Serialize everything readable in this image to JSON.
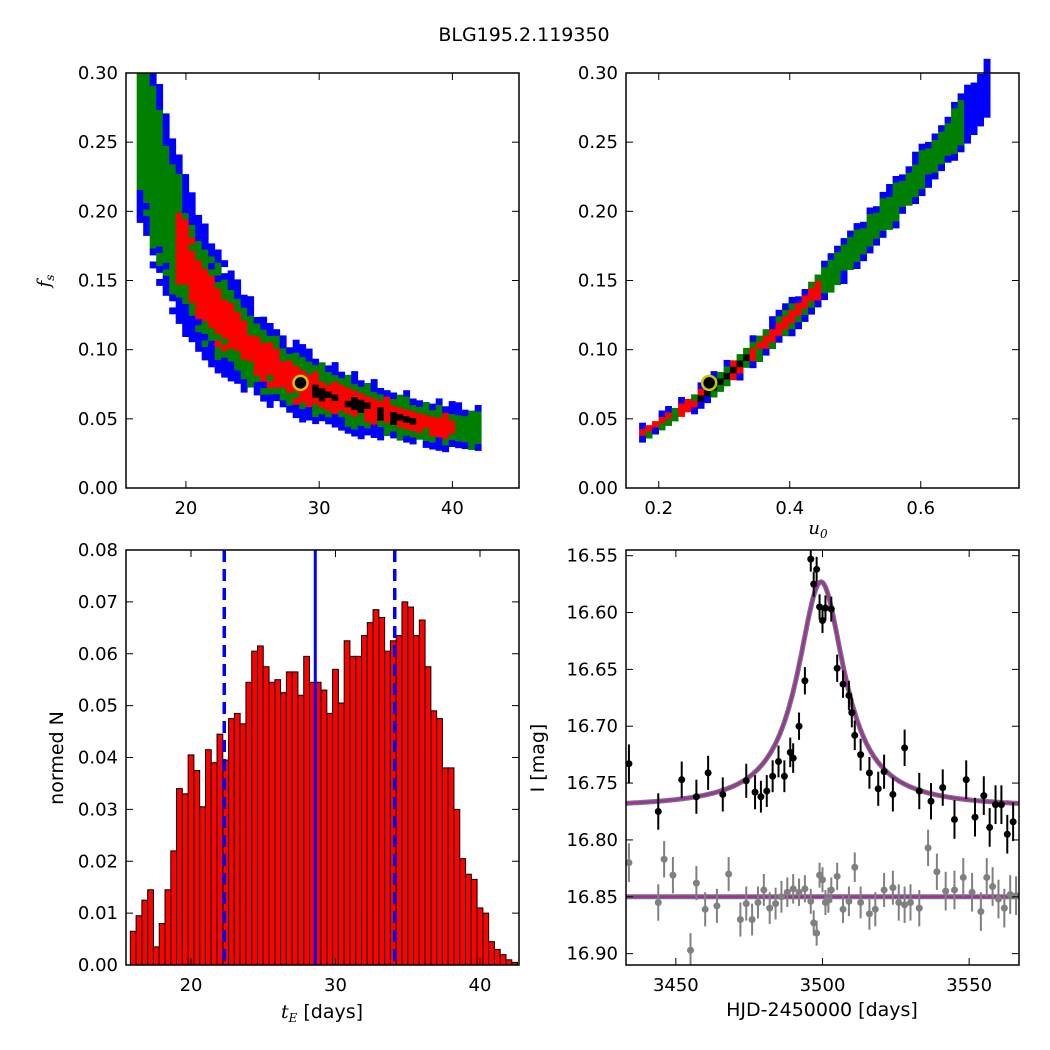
{
  "figure": {
    "title": "BLG195.2.119350"
  },
  "colors": {
    "outer_region": "#0000ff",
    "mid_region": "#008000",
    "inner_region": "#ff0000",
    "core_region": "#000000",
    "best_fit_marker": "#c9c900",
    "hist_bar": "#ff0000",
    "hist_edge": "#000000",
    "median_line": "#0000ff",
    "model_curve": "#a030a0",
    "data_band1": "#000000",
    "data_band2": "#808080"
  },
  "chart_data": [
    {
      "id": "fs_vs_tE",
      "type": "heatmap",
      "title": "",
      "xlabel": "",
      "ylabel": "f_s",
      "xlim": [
        15.5,
        45
      ],
      "ylim": [
        0.0,
        0.3
      ],
      "xticks": [
        "20",
        "30",
        "40"
      ],
      "yticks": [
        "0.00",
        "0.05",
        "0.10",
        "0.15",
        "0.20",
        "0.25",
        "0.30"
      ],
      "best_fit": {
        "x": 28.6,
        "y": 0.076
      },
      "ridge": {
        "x": [
          16.3,
          17.0,
          18.0,
          19.0,
          20.0,
          21.0,
          22.0,
          23.0,
          24.0,
          25.0,
          26.0,
          27.0,
          28.0,
          29.0,
          30.0,
          32.0,
          34.0,
          36.0,
          38.0,
          40.0,
          42.0
        ],
        "y": [
          0.285,
          0.252,
          0.214,
          0.186,
          0.164,
          0.146,
          0.131,
          0.119,
          0.109,
          0.1,
          0.093,
          0.086,
          0.08,
          0.075,
          0.071,
          0.064,
          0.058,
          0.053,
          0.049,
          0.046,
          0.044
        ]
      }
    },
    {
      "id": "fs_vs_u0",
      "type": "heatmap",
      "title": "",
      "xlabel": "u_0",
      "ylabel": "",
      "xlim": [
        0.15,
        0.75
      ],
      "ylim": [
        0.0,
        0.3
      ],
      "xticks": [
        "0.2",
        "0.4",
        "0.6"
      ],
      "yticks": [
        "0.00",
        "0.05",
        "0.10",
        "0.15",
        "0.20",
        "0.25",
        "0.30"
      ],
      "best_fit": {
        "x": 0.277,
        "y": 0.076
      },
      "ridge": {
        "x": [
          0.17,
          0.2,
          0.25,
          0.3,
          0.35,
          0.4,
          0.45,
          0.5,
          0.55,
          0.6,
          0.65,
          0.7
        ],
        "y": [
          0.042,
          0.05,
          0.065,
          0.084,
          0.105,
          0.127,
          0.152,
          0.178,
          0.205,
          0.233,
          0.262,
          0.292
        ]
      }
    },
    {
      "id": "tE_histogram",
      "type": "bar",
      "title": "",
      "xlabel": "t_E [days]",
      "ylabel": "normed N",
      "xlim": [
        15.5,
        42.7
      ],
      "ylim": [
        0.0,
        0.08
      ],
      "xticks": [
        "20",
        "30",
        "40"
      ],
      "yticks": [
        "0.00",
        "0.01",
        "0.02",
        "0.03",
        "0.04",
        "0.05",
        "0.06",
        "0.07",
        "0.08"
      ],
      "bin_start": 15.8,
      "bin_width": 0.4,
      "values": [
        0.0065,
        0.0095,
        0.0125,
        0.0145,
        0.0035,
        0.008,
        0.0145,
        0.022,
        0.034,
        0.033,
        0.0405,
        0.0375,
        0.0305,
        0.0415,
        0.039,
        0.0445,
        0.0395,
        0.0475,
        0.0485,
        0.0465,
        0.0545,
        0.0605,
        0.0615,
        0.0575,
        0.0545,
        0.055,
        0.0525,
        0.0565,
        0.0565,
        0.052,
        0.0595,
        0.0545,
        0.0545,
        0.053,
        0.0485,
        0.057,
        0.0505,
        0.0625,
        0.0595,
        0.0595,
        0.0635,
        0.066,
        0.0685,
        0.067,
        0.0605,
        0.0625,
        0.0635,
        0.07,
        0.069,
        0.0635,
        0.0665,
        0.0575,
        0.049,
        0.0475,
        0.038,
        0.038,
        0.03,
        0.0205,
        0.0175,
        0.0165,
        0.011,
        0.01,
        0.0045,
        0.003,
        0.002,
        0.001,
        0.0005
      ],
      "median": 28.6,
      "lower": 22.3,
      "upper": 34.1
    },
    {
      "id": "light_curve",
      "type": "scatter",
      "title": "",
      "xlabel": "HJD-2450000 [days]",
      "ylabel": "I [mag]",
      "xlim": [
        3433,
        3567
      ],
      "ylim": [
        16.91,
        16.545
      ],
      "xticks": [
        "3450",
        "3500",
        "3550"
      ],
      "yticks": [
        "16.55",
        "16.60",
        "16.65",
        "16.70",
        "16.75",
        "16.80",
        "16.85",
        "16.90"
      ],
      "model": {
        "t0": 3499.5,
        "baseline": 16.772,
        "peak_mag": 16.573,
        "width": 9.8
      },
      "residual_baseline": 16.85,
      "series": [
        {
          "x": [
            3434,
            3444,
            3452,
            3457,
            3461,
            3466,
            3474,
            3477,
            3479,
            3481,
            3483,
            3485,
            3487,
            3489,
            3490,
            3492,
            3494,
            3496,
            3497,
            3498,
            3499,
            3500,
            3501,
            3503,
            3505,
            3507,
            3509,
            3510,
            3511,
            3513,
            3516,
            3519,
            3521,
            3524,
            3528,
            3533,
            3537,
            3541,
            3545,
            3549,
            3552,
            3555,
            3557,
            3559,
            3561,
            3563,
            3565
          ],
          "y": [
            16.733,
            16.775,
            16.747,
            16.762,
            16.741,
            16.76,
            16.748,
            16.758,
            16.762,
            16.757,
            16.744,
            16.731,
            16.744,
            16.723,
            16.728,
            16.7,
            16.66,
            16.553,
            16.575,
            16.562,
            16.595,
            16.607,
            16.596,
            16.597,
            16.649,
            16.663,
            16.673,
            16.688,
            16.708,
            16.725,
            16.741,
            16.755,
            16.74,
            16.76,
            16.719,
            16.757,
            16.766,
            16.754,
            16.782,
            16.747,
            16.78,
            16.761,
            16.789,
            16.769,
            16.769,
            16.795,
            16.784
          ],
          "err": [
            0.017,
            0.016,
            0.016,
            0.015,
            0.015,
            0.015,
            0.015,
            0.015,
            0.014,
            0.014,
            0.014,
            0.014,
            0.014,
            0.013,
            0.013,
            0.012,
            0.012,
            0.011,
            0.011,
            0.011,
            0.011,
            0.011,
            0.011,
            0.011,
            0.012,
            0.012,
            0.013,
            0.013,
            0.013,
            0.014,
            0.014,
            0.015,
            0.015,
            0.015,
            0.016,
            0.016,
            0.016,
            0.016,
            0.017,
            0.017,
            0.017,
            0.017,
            0.017,
            0.017,
            0.017,
            0.017,
            0.017
          ]
        },
        {
          "x": [
            3434,
            3444,
            3446,
            3449,
            3455,
            3457,
            3460,
            3464,
            3468,
            3472,
            3474,
            3476,
            3478,
            3480,
            3482,
            3484,
            3486,
            3488,
            3490,
            3492,
            3494,
            3496,
            3497,
            3498,
            3499,
            3500,
            3501,
            3502,
            3503,
            3505,
            3507,
            3509,
            3511,
            3513,
            3516,
            3518,
            3521,
            3524,
            3526,
            3528,
            3530,
            3533,
            3536,
            3539,
            3542,
            3545,
            3548,
            3551,
            3554,
            3556,
            3558,
            3560,
            3562,
            3564,
            3566
          ],
          "y": [
            16.82,
            16.855,
            16.817,
            16.831,
            16.897,
            16.838,
            16.861,
            16.858,
            16.83,
            16.87,
            16.856,
            16.87,
            16.855,
            16.844,
            16.86,
            16.856,
            16.85,
            16.846,
            16.843,
            16.846,
            16.843,
            16.854,
            16.873,
            16.882,
            16.831,
            16.835,
            16.855,
            16.853,
            16.844,
            16.832,
            16.861,
            16.854,
            16.824,
            16.855,
            16.865,
            16.861,
            16.844,
            16.842,
            16.855,
            16.857,
            16.855,
            16.86,
            16.807,
            16.828,
            16.845,
            16.844,
            16.833,
            16.846,
            16.863,
            16.833,
            16.841,
            16.852,
            16.86,
            16.848,
            16.849
          ],
          "err": [
            0.017,
            0.016,
            0.016,
            0.016,
            0.015,
            0.015,
            0.015,
            0.015,
            0.015,
            0.015,
            0.015,
            0.014,
            0.014,
            0.014,
            0.014,
            0.014,
            0.014,
            0.013,
            0.013,
            0.012,
            0.012,
            0.011,
            0.011,
            0.011,
            0.011,
            0.011,
            0.011,
            0.011,
            0.011,
            0.012,
            0.012,
            0.013,
            0.013,
            0.014,
            0.014,
            0.015,
            0.015,
            0.015,
            0.016,
            0.016,
            0.016,
            0.016,
            0.016,
            0.016,
            0.017,
            0.017,
            0.017,
            0.017,
            0.017,
            0.017,
            0.017,
            0.017,
            0.017,
            0.017,
            0.017
          ]
        }
      ]
    }
  ]
}
